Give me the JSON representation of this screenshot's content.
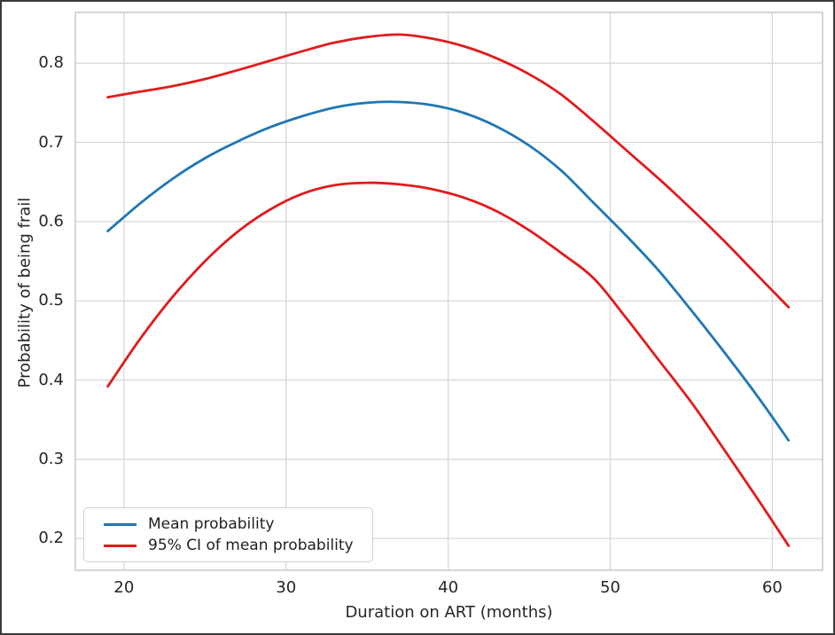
{
  "figure": {
    "border_color": "#3a3a3a",
    "background_color": "#ffffff",
    "text_color": "#262626"
  },
  "chart_data": {
    "type": "line",
    "title": "",
    "xlabel": "Duration on ART (months)",
    "ylabel": "Probability of being frail",
    "xlim": [
      17.0,
      63.1
    ],
    "ylim": [
      0.16,
      0.864
    ],
    "xticks": [
      20,
      30,
      40,
      50,
      60
    ],
    "yticks": [
      0.2,
      0.3,
      0.4,
      0.5,
      0.6,
      0.7,
      0.8
    ],
    "grid": true,
    "legend_position": "lower left",
    "x": [
      19,
      21,
      23,
      25,
      27,
      29,
      31,
      33,
      35,
      37,
      39,
      41,
      43,
      45,
      47,
      49,
      51,
      53,
      55,
      57,
      59,
      61
    ],
    "series": [
      {
        "name": "Mean probability",
        "color": "#1f77b4",
        "values": [
          0.588,
          0.623,
          0.654,
          0.68,
          0.701,
          0.719,
          0.733,
          0.744,
          0.75,
          0.751,
          0.747,
          0.737,
          0.72,
          0.696,
          0.664,
          0.623,
          0.582,
          0.538,
          0.488,
          0.436,
          0.382,
          0.324
        ]
      },
      {
        "name": "95% CI upper bound",
        "color": "#e01b1d",
        "values": [
          0.757,
          0.764,
          0.771,
          0.78,
          0.791,
          0.803,
          0.815,
          0.826,
          0.833,
          0.836,
          0.831,
          0.821,
          0.806,
          0.786,
          0.76,
          0.726,
          0.69,
          0.654,
          0.616,
          0.576,
          0.534,
          0.492
        ]
      },
      {
        "name": "95% CI lower bound",
        "color": "#e01b1d",
        "values": [
          0.392,
          0.452,
          0.505,
          0.55,
          0.587,
          0.615,
          0.635,
          0.646,
          0.649,
          0.647,
          0.641,
          0.63,
          0.613,
          0.589,
          0.56,
          0.528,
          0.478,
          0.425,
          0.372,
          0.313,
          0.253,
          0.191
        ]
      }
    ],
    "legend": [
      {
        "label": "Mean probability",
        "color": "#1f77b4"
      },
      {
        "label": "95% CI of mean probability",
        "color": "#e01b1d"
      }
    ]
  }
}
